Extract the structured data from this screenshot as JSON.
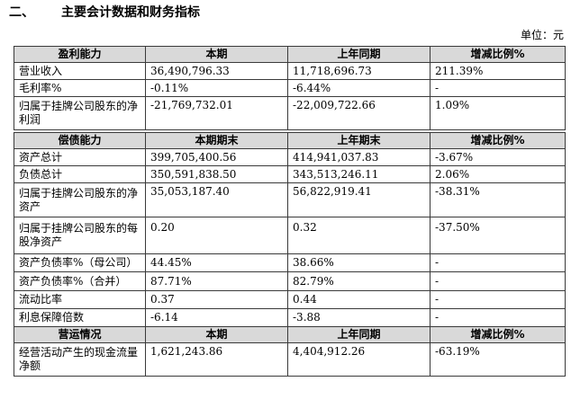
{
  "section": {
    "number": "二、",
    "title": "主要会计数据和财务指标"
  },
  "unit_label": "单位：元",
  "groups": [
    {
      "header": [
        "盈利能力",
        "本期",
        "上年同期",
        "增减比例%"
      ],
      "rows": [
        [
          "营业收入",
          "36,490,796.33",
          "11,718,696.73",
          "211.39%"
        ],
        [
          "毛利率%",
          "-0.11%",
          "-6.44%",
          "-"
        ],
        [
          "归属于挂牌公司股东的净利润",
          "-21,769,732.01",
          "-22,009,722.66",
          "1.09%"
        ]
      ]
    },
    {
      "header": [
        "偿债能力",
        "本期期末",
        "上年期末",
        "增减比例%"
      ],
      "rows": [
        [
          "资产总计",
          "399,705,400.56",
          "414,941,037.83",
          "-3.67%"
        ],
        [
          "负债总计",
          "350,591,838.50",
          "343,513,246.11",
          "2.06%"
        ],
        [
          "归属于挂牌公司股东的净资产",
          "35,053,187.40",
          "56,822,919.41",
          "-38.31%"
        ],
        [
          "归属于挂牌公司股东的每股净资产",
          "0.20",
          "0.32",
          "-37.50%"
        ],
        [
          "资产负债率%（母公司）",
          "44.45%",
          "38.66%",
          "-"
        ],
        [
          "资产负债率%（合并）",
          "87.71%",
          "82.79%",
          "-"
        ],
        [
          "流动比率",
          "0.37",
          "0.44",
          "-"
        ],
        [
          "利息保障倍数",
          "-6.14",
          "-3.88",
          "-"
        ]
      ]
    },
    {
      "header": [
        "营运情况",
        "本期",
        "上年同期",
        "增减比例%"
      ],
      "rows": [
        [
          "经营活动产生的现金流量净额",
          "1,621,243.86",
          "4,404,912.26",
          "-63.19%"
        ]
      ]
    }
  ]
}
